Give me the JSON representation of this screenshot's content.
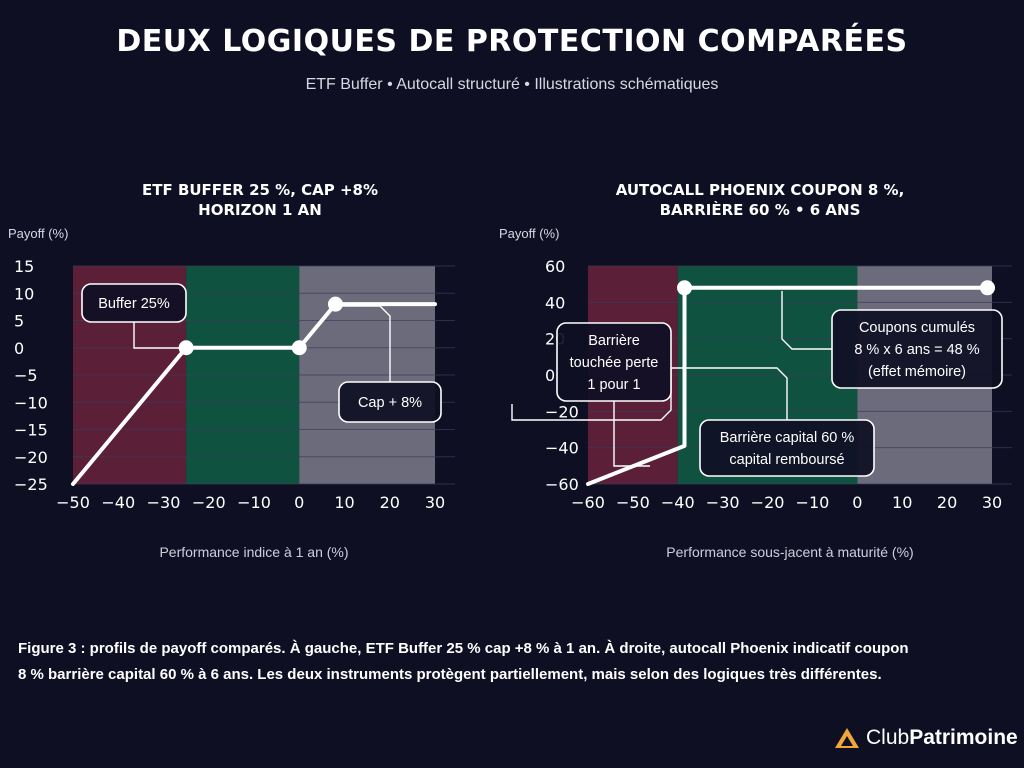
{
  "page": {
    "title": "DEUX LOGIQUES DE PROTECTION COMPARÉES",
    "subtitle": "ETF Buffer • Autocall structuré • Illustrations schématiques",
    "caption_line1": "Figure 3 : profils de payoff comparés. À gauche, ETF Buffer 25 % cap +8 % à 1 an. À droite, autocall Phoenix indicatif coupon",
    "caption_line2": "8 % barrière capital 60 % à 6 ans. Les deux instruments protègent partiellement, mais selon des logiques très différentes.",
    "brand_part1": "Club",
    "brand_part2": "Patrimoine",
    "colors": {
      "background": "#0f0f24",
      "zone_red": "#5b1f38",
      "zone_green": "#0f5240",
      "zone_grey": "#6b6b7c",
      "line": "#ffffff",
      "brand_orange": "#f0a63a"
    }
  },
  "chart_data": [
    {
      "type": "line",
      "title_line1": "ETF BUFFER 25 %, CAP +8%",
      "title_line2": "HORIZON 1 AN",
      "xlabel": "Performance indice à 1 an (%)",
      "ylabel": "Payoff (%)",
      "xlim": [
        -50,
        30
      ],
      "ylim": [
        -25,
        15
      ],
      "xticks": [
        -50,
        -40,
        -30,
        -20,
        -10,
        0,
        10,
        20,
        30
      ],
      "yticks": [
        15,
        10,
        5,
        0,
        -5,
        -10,
        -15,
        -20,
        -25
      ],
      "zones": [
        {
          "from": -50,
          "to": -25,
          "color": "#5b1f38"
        },
        {
          "from": -25,
          "to": 0,
          "color": "#0f5240"
        },
        {
          "from": 0,
          "to": 30,
          "color": "#6b6b7c"
        }
      ],
      "series": [
        {
          "x": [
            -50,
            -25,
            0,
            8,
            30
          ],
          "y": [
            -25,
            0,
            0,
            8,
            8
          ]
        }
      ],
      "markers": [
        {
          "x": -25,
          "y": 0
        },
        {
          "x": 0,
          "y": 0
        },
        {
          "x": 8,
          "y": 8
        }
      ],
      "annotations": [
        {
          "lines": [
            "Buffer 25%"
          ]
        },
        {
          "lines": [
            "Cap + 8%"
          ]
        }
      ]
    },
    {
      "type": "line",
      "title_line1": "AUTOCALL PHOENIX COUPON 8 %,",
      "title_line2": "BARRIÈRE 60 % • 6 ANS",
      "xlabel": "Performance sous-jacent à maturité (%)",
      "ylabel": "Payoff (%)",
      "xlim": [
        -60,
        30
      ],
      "ylim": [
        -60,
        60
      ],
      "xticks": [
        -60,
        -50,
        -40,
        -30,
        -20,
        -10,
        0,
        10,
        20,
        30
      ],
      "yticks": [
        60,
        40,
        20,
        0,
        -20,
        -40,
        -60
      ],
      "zones": [
        {
          "from": -60,
          "to": -40,
          "color": "#5b1f38"
        },
        {
          "from": -40,
          "to": 0,
          "color": "#0f5240"
        },
        {
          "from": 0,
          "to": 30,
          "color": "#6b6b7c"
        }
      ],
      "series": [
        {
          "x": [
            -60,
            -38.5,
            -38.5,
            29
          ],
          "y": [
            -60,
            -39,
            48,
            48
          ]
        }
      ],
      "markers": [
        {
          "x": -38.5,
          "y": 48
        },
        {
          "x": 29,
          "y": 48
        }
      ],
      "annotations": [
        {
          "lines": [
            "Barrière",
            "touchée perte",
            "1 pour 1"
          ]
        },
        {
          "lines": [
            "Barrière capital 60 %",
            "capital remboursé"
          ]
        },
        {
          "lines": [
            "Coupons cumulés",
            "8 % x 6 ans = 48 %",
            "(effet mémoire)"
          ]
        }
      ]
    }
  ]
}
